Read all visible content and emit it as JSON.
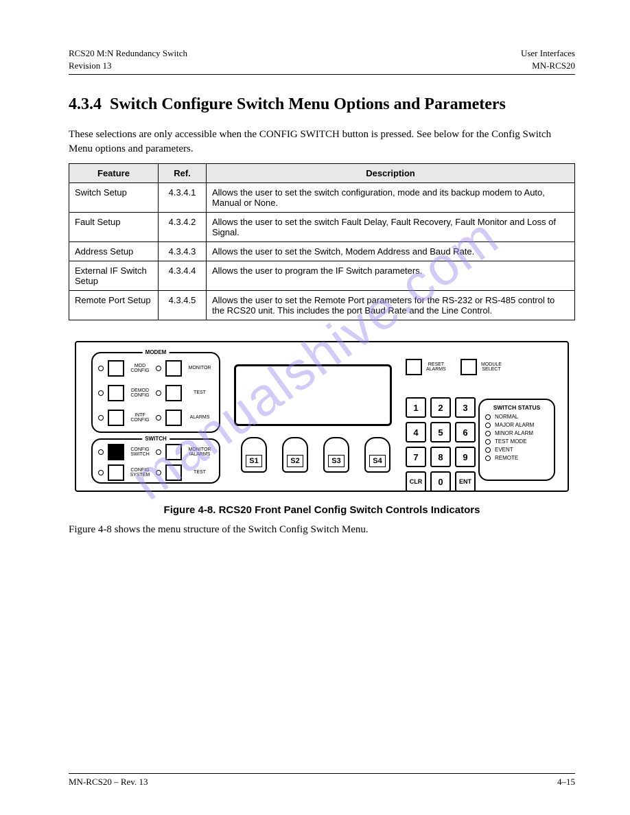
{
  "header": {
    "left1": "RCS20 M:N Redundancy Switch",
    "right1": "User Interfaces",
    "left2": "Revision 13",
    "right2": "MN-RCS20"
  },
  "section_number": "4.3.4",
  "section_title": "Switch Configure Switch Menu Options and Parameters",
  "intro": "These selections are only accessible when the CONFIG SWITCH button is pressed. See below for the Config Switch Menu options and parameters.",
  "table": {
    "columns": [
      "Feature",
      "Ref.",
      "Description"
    ],
    "rows": [
      [
        "Switch Setup",
        "4.3.4.1",
        "Allows the user to set the switch configuration, mode and its backup modem to Auto, Manual or None."
      ],
      [
        "Fault Setup",
        "4.3.4.2",
        "Allows the user to set the switch Fault Delay, Fault Recovery, Fault Monitor and Loss of Signal."
      ],
      [
        "Address Setup",
        "4.3.4.3",
        "Allows the user to set the Switch, Modem Address and Baud Rate."
      ],
      [
        "External IF Switch Setup",
        "4.3.4.4",
        "Allows the user to program the IF Switch parameters."
      ],
      [
        "Remote Port Setup",
        "4.3.4.5",
        "Allows the user to set the Remote Port parameters for the RS-232 or RS-485 control to the RCS20 unit.  This includes the port Baud Rate and the Line Control."
      ]
    ]
  },
  "panel": {
    "modem_title": "MODEM",
    "switch_title": "SWITCH",
    "modem_rows": [
      {
        "left": "MOD\nCONFIG",
        "right": "MONITOR"
      },
      {
        "left": "DEMOD\nCONFIG",
        "right": "TEST"
      },
      {
        "left": "INTF\nCONFIG",
        "right": "ALARMS"
      }
    ],
    "switch_rows": [
      {
        "left": "CONFIG\nSWITCH",
        "right": "MONITOR\n/ALARMS",
        "left_filled": true
      },
      {
        "left": "CONFIG\nSYSTEM",
        "right": "TEST",
        "left_filled": false
      }
    ],
    "reset_label": "RESET\nALARMS",
    "module_label": "MODULE\nSELECT",
    "softkeys": [
      "S1",
      "S2",
      "S3",
      "S4"
    ],
    "keypad": [
      "1",
      "2",
      "3",
      "4",
      "5",
      "6",
      "7",
      "8",
      "9",
      "CLR",
      "0",
      "ENT"
    ],
    "status_title": "SWITCH STATUS",
    "status_items": [
      "NORMAL",
      "MAJOR ALARM",
      "MINOR ALARM",
      "TEST MODE",
      "EVENT",
      "REMOTE"
    ]
  },
  "figure_caption": "Figure 4-8. RCS20 Front Panel Config Switch Controls Indicators",
  "figure_ref_label": "Figure 4-8",
  "figure_ref_text": "shows the menu structure of the Switch Config Switch Menu.",
  "footer": {
    "left": "MN-RCS20 – Rev. 13",
    "right": "4–15"
  },
  "watermark": "manualshive.com"
}
